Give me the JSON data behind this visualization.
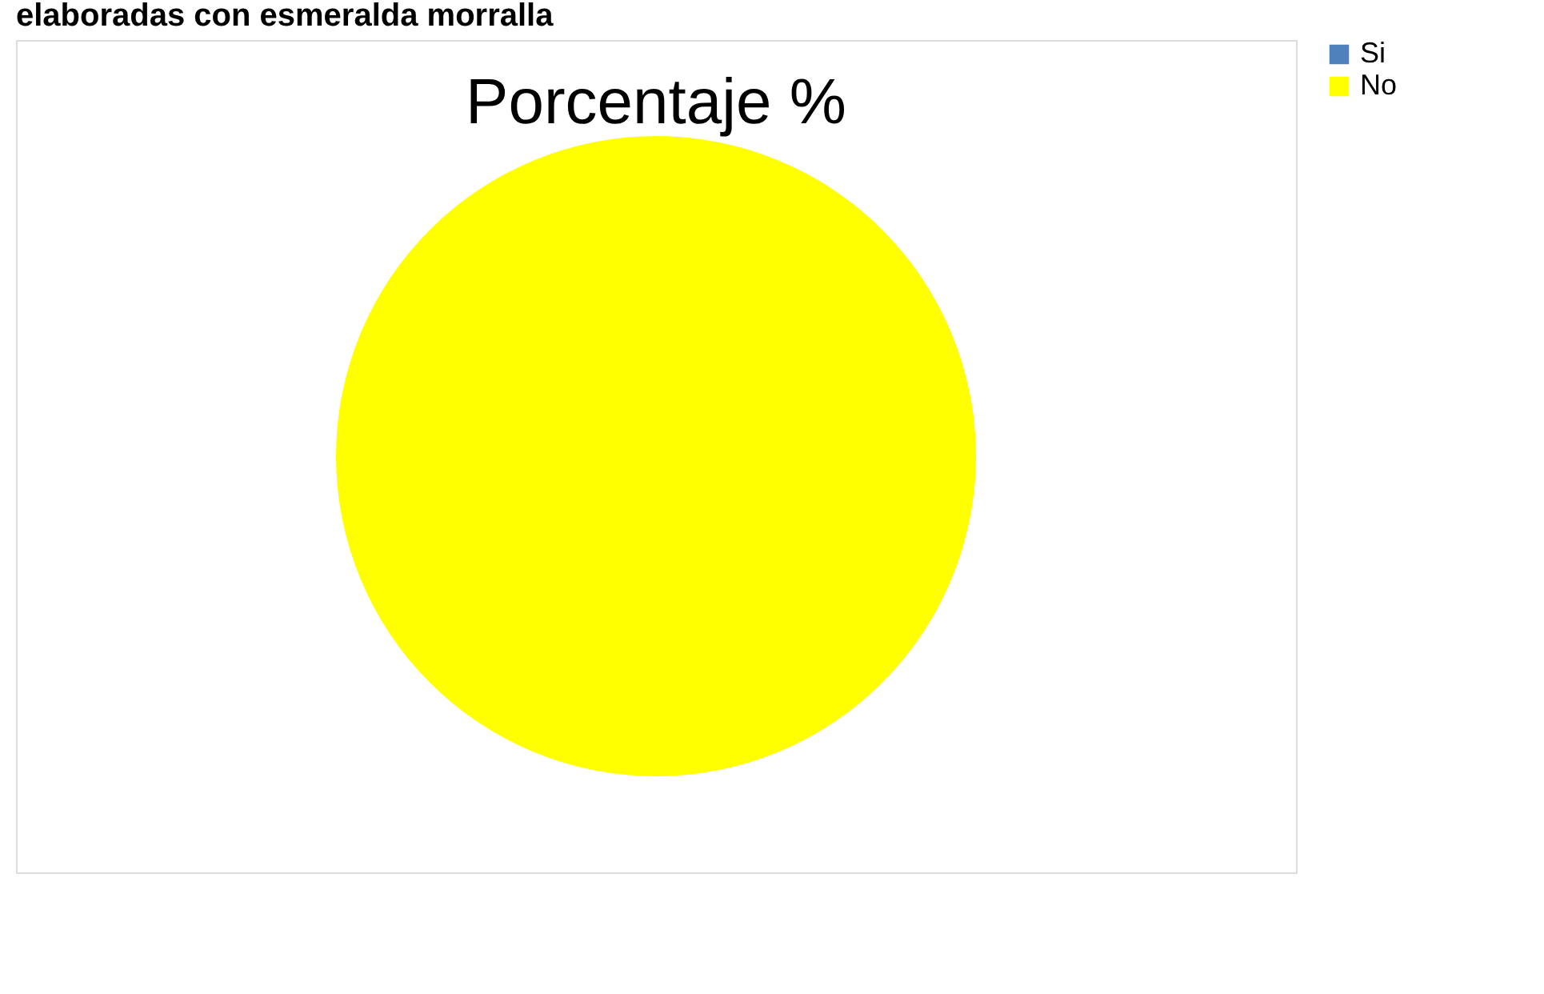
{
  "chart_data": {
    "type": "pie",
    "title": "Porcentaje %",
    "annotations": [
      "elaboradas con esmeralda morralla"
    ],
    "categories": [
      "Si",
      "No"
    ],
    "values": [
      0,
      100
    ],
    "colors": [
      "#4f81bd",
      "#ffff00"
    ],
    "legend": "right"
  }
}
